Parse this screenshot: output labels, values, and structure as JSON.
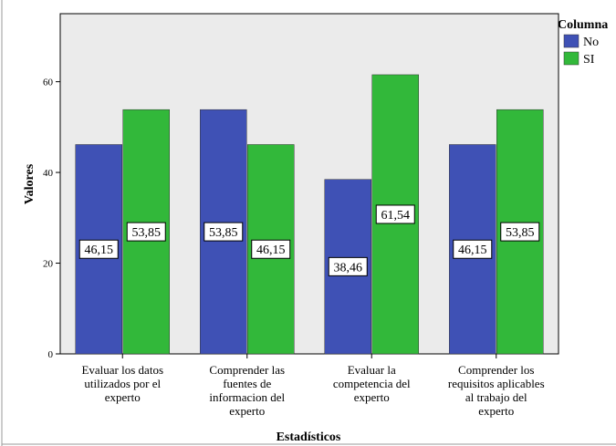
{
  "chart_data": {
    "type": "bar",
    "xlabel": "Estadísticos",
    "ylabel": "Valores",
    "ylim": [
      0,
      75
    ],
    "yticks": [
      0,
      20,
      40,
      60
    ],
    "grid": false,
    "legend": {
      "title": "Columna",
      "position": "top-right"
    },
    "categories": [
      [
        "Evaluar los datos",
        "utilizados por el",
        "experto"
      ],
      [
        "Comprender las",
        "fuentes de",
        "informacion del",
        "experto"
      ],
      [
        "Evaluar la",
        "competencia del",
        "experto"
      ],
      [
        "Comprender los",
        "requisitos aplicables",
        "al trabajo del",
        "experto"
      ]
    ],
    "series": [
      {
        "name": "No",
        "color": "#3F51B5",
        "values": [
          46.15,
          53.85,
          38.46,
          46.15
        ],
        "labels": [
          "46,15",
          "53,85",
          "38,46",
          "46,15"
        ]
      },
      {
        "name": "SI",
        "color": "#32B83A",
        "values": [
          53.85,
          46.15,
          61.54,
          53.85
        ],
        "labels": [
          "53,85",
          "46,15",
          "61,54",
          "53,85"
        ]
      }
    ],
    "plot_background": "#EBEBEB"
  }
}
